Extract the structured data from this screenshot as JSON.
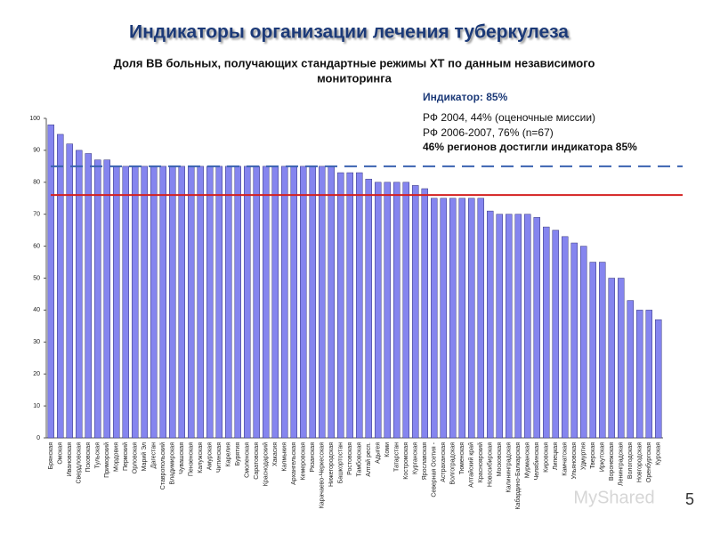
{
  "chart_data": {
    "type": "bar",
    "title": "Индикаторы организации лечения туберкулеза",
    "subtitle": [
      "Доля ВВ больных, получающих стандартные режимы ХТ по данным независимого",
      "мониторинга"
    ],
    "annotations": [
      "Индикатор: 85%",
      "РФ 2004, 44% (оценочные миссии)",
      "РФ 2006-2007, 76% (n=67)",
      "46% регионов достигли индикатора 85%"
    ],
    "categories": [
      "Брянская",
      "Омская",
      "Ивановская",
      "Свердловская",
      "Псковская",
      "Тульская",
      "Приморский",
      "Мордовия",
      "Пермский",
      "Орловская",
      "Марий Эл",
      "Дагестан",
      "Ставропольский",
      "Владимирская",
      "Чувашская",
      "Пензенская",
      "Калужская",
      "Амурская",
      "Читинская",
      "Карелия",
      "Бурятия",
      "Смоленская",
      "Саратовская",
      "Краснодарский",
      "Хакасия",
      "Калмыкия",
      "Архангельская",
      "Кемеровская",
      "Рязанская",
      "Карачаево-Черкесская",
      "Нижегородская",
      "Башкортостан",
      "Ростовская",
      "Тамбовская",
      "Алтай респ.",
      "Адыгея",
      "Коми",
      "Татарстан",
      "Костромская",
      "Курганская",
      "Ярославская",
      "Северная Осетия -",
      "Астраханская",
      "Волгоградская",
      "Тюменская",
      "Алтайский край",
      "Красноярский",
      "Новосибирская",
      "Московская",
      "Калининградская",
      "Кабардино-Балкарская",
      "Мурманская",
      "Челябинская",
      "Кировская",
      "Липецкая",
      "Камчатская",
      "Ульяновская",
      "Удмуртия",
      "Тверская",
      "Иркутская",
      "Воронежская",
      "Ленинградская",
      "Вологодская",
      "Новгородская",
      "Оренбургская",
      "Курская"
    ],
    "values": [
      98,
      95,
      92,
      90,
      89,
      87,
      87,
      85,
      85,
      85,
      85,
      85,
      85,
      85,
      85,
      85,
      85,
      85,
      85,
      85,
      85,
      85,
      85,
      85,
      85,
      85,
      85,
      85,
      85,
      85,
      85,
      83,
      83,
      83,
      81,
      80,
      80,
      80,
      80,
      79,
      78,
      75,
      75,
      75,
      75,
      75,
      75,
      71,
      70,
      70,
      70,
      70,
      69,
      66,
      65,
      63,
      61,
      60,
      55,
      55,
      50,
      50,
      43,
      40,
      40,
      37
    ],
    "color": "#8585ef",
    "reference_lines": [
      {
        "value": 85,
        "color": "#3a62b0",
        "dashed": true
      },
      {
        "value": 76,
        "color": "#d42020",
        "dashed": false
      }
    ],
    "ylim": [
      0,
      100
    ],
    "yticks": [
      0,
      10,
      20,
      30,
      40,
      50,
      60,
      70,
      80,
      90,
      100
    ],
    "grid": false
  },
  "slide_number": "5",
  "watermark": "MyShared"
}
